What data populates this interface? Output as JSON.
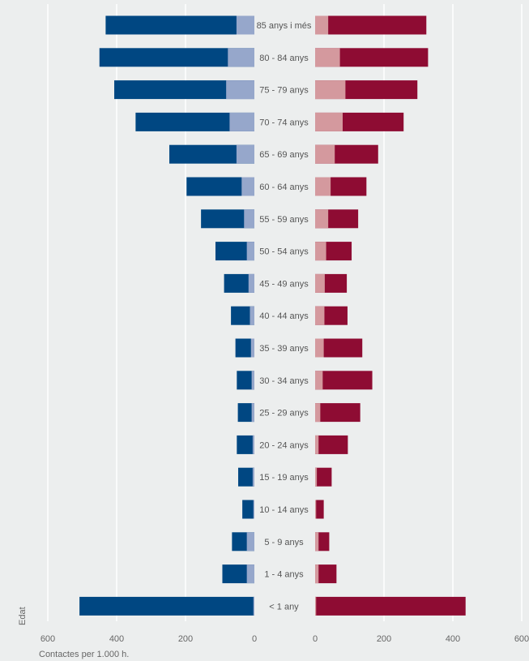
{
  "chart_data": {
    "type": "bar",
    "orientation": "horizontal",
    "layout": "population-pyramid",
    "grid": true,
    "categories": [
      "85 anys i més",
      "80 - 84 anys",
      "75 - 79 anys",
      "70 - 74 anys",
      "65 - 69 anys",
      "60 - 64 anys",
      "55 - 59 anys",
      "50 - 54 anys",
      "45 - 49 anys",
      "40 - 44 anys",
      "35 - 39 anys",
      "30 - 34 anys",
      "25 - 29 anys",
      "20 - 24 anys",
      "15 - 19 anys",
      "10 - 14 anys",
      "5 - 9 anys",
      "1 - 4 anys",
      "< 1 any"
    ],
    "left_panel": {
      "xlim": [
        0,
        600
      ],
      "direction": "reversed",
      "ticks": [
        "600",
        "400",
        "200",
        "0"
      ],
      "series": [
        {
          "values": [
            432,
            450,
            407,
            345,
            247,
            197,
            155,
            113,
            88,
            68,
            55,
            51,
            48,
            51,
            47,
            35,
            65,
            93,
            508
          ],
          "color": "#004782"
        },
        {
          "values": [
            52,
            77,
            82,
            72,
            52,
            37,
            30,
            22,
            17,
            13,
            10,
            8,
            8,
            5,
            5,
            3,
            22,
            22,
            3
          ],
          "color": "#96a7cb"
        }
      ]
    },
    "right_panel": {
      "xlim": [
        0,
        600
      ],
      "ticks": [
        "0",
        "200",
        "400",
        "600"
      ],
      "series": [
        {
          "values": [
            323,
            328,
            297,
            257,
            183,
            149,
            125,
            106,
            92,
            94,
            137,
            166,
            131,
            95,
            48,
            25,
            41,
            62,
            437
          ],
          "color": "#8e0c33"
        },
        {
          "values": [
            38,
            72,
            88,
            80,
            57,
            45,
            38,
            32,
            28,
            27,
            25,
            22,
            15,
            10,
            5,
            3,
            10,
            10,
            3
          ],
          "color": "#d4999e"
        }
      ]
    },
    "ylabel": "Edat",
    "xlabel": "Contactes per 1.000 h."
  }
}
